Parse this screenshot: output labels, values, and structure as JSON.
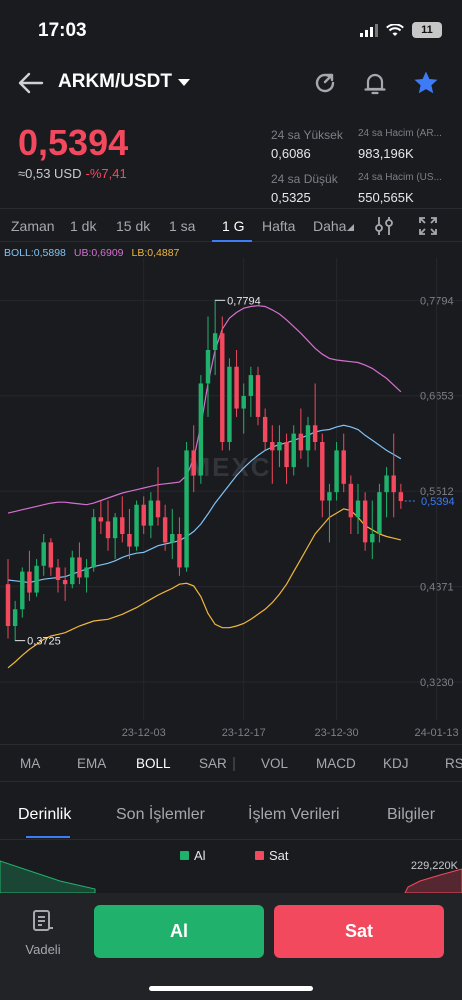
{
  "status": {
    "time": "17:03",
    "battery": "11"
  },
  "header": {
    "pair": "ARKM/USDT"
  },
  "price": {
    "last": "0,5394",
    "usd": "≈0,53 USD",
    "change": "-%7,41"
  },
  "stats": {
    "high_label": "24 sa Yüksek",
    "high": "0,6086",
    "low_label": "24 sa Düşük",
    "low": "0,5325",
    "vol1_label": "24 sa Hacim (AR...",
    "vol1": "983,196K",
    "vol2_label": "24 sa Hacim (US...",
    "vol2": "550,565K"
  },
  "timeframes": [
    "Zaman",
    "1 dk",
    "15 dk",
    "1 sa",
    "1 G",
    "Hafta",
    "Daha"
  ],
  "active_timeframe": "1 G",
  "indicator_legend": {
    "boll": "BOLL:0,5898",
    "ub": "UB:0,6909",
    "lb": "LB:0,4887"
  },
  "colors": {
    "up": "#20b26c",
    "down": "#f2495e",
    "boll": "#7ec3f5",
    "ub": "#d56fd0",
    "lb": "#f0b73e",
    "accent": "#3d7bf7"
  },
  "chart_data": {
    "type": "candlestick",
    "ylim": [
      0.28,
      0.83
    ],
    "yticks": [
      "0,7794",
      "0,6653",
      "0,5512",
      "0,4371",
      "0,3230"
    ],
    "xticks": [
      "23-12-03",
      "23-12-17",
      "23-12-30",
      "24-01-13"
    ],
    "max_label": "0,7794",
    "min_label": "0,3725",
    "last_label": "0,5394",
    "watermark": "MEXC",
    "candles": [
      [
        0.44,
        0.47,
        0.375,
        0.39
      ],
      [
        0.39,
        0.42,
        0.372,
        0.41
      ],
      [
        0.41,
        0.46,
        0.4,
        0.455
      ],
      [
        0.455,
        0.48,
        0.42,
        0.43
      ],
      [
        0.43,
        0.47,
        0.425,
        0.462
      ],
      [
        0.462,
        0.5,
        0.45,
        0.49
      ],
      [
        0.49,
        0.495,
        0.45,
        0.46
      ],
      [
        0.46,
        0.47,
        0.43,
        0.445
      ],
      [
        0.445,
        0.46,
        0.42,
        0.44
      ],
      [
        0.44,
        0.48,
        0.435,
        0.472
      ],
      [
        0.472,
        0.49,
        0.44,
        0.448
      ],
      [
        0.448,
        0.47,
        0.43,
        0.46
      ],
      [
        0.46,
        0.53,
        0.455,
        0.52
      ],
      [
        0.52,
        0.54,
        0.5,
        0.515
      ],
      [
        0.515,
        0.54,
        0.48,
        0.495
      ],
      [
        0.495,
        0.525,
        0.47,
        0.52
      ],
      [
        0.52,
        0.545,
        0.49,
        0.5
      ],
      [
        0.5,
        0.53,
        0.47,
        0.485
      ],
      [
        0.485,
        0.54,
        0.48,
        0.535
      ],
      [
        0.535,
        0.545,
        0.5,
        0.51
      ],
      [
        0.51,
        0.55,
        0.495,
        0.54
      ],
      [
        0.54,
        0.58,
        0.51,
        0.52
      ],
      [
        0.52,
        0.535,
        0.48,
        0.49
      ],
      [
        0.49,
        0.53,
        0.47,
        0.5
      ],
      [
        0.5,
        0.52,
        0.45,
        0.46
      ],
      [
        0.46,
        0.61,
        0.455,
        0.6
      ],
      [
        0.6,
        0.63,
        0.55,
        0.57
      ],
      [
        0.57,
        0.69,
        0.56,
        0.68
      ],
      [
        0.68,
        0.76,
        0.64,
        0.72
      ],
      [
        0.72,
        0.78,
        0.69,
        0.74
      ],
      [
        0.74,
        0.76,
        0.6,
        0.61
      ],
      [
        0.61,
        0.71,
        0.6,
        0.7
      ],
      [
        0.7,
        0.72,
        0.64,
        0.65
      ],
      [
        0.65,
        0.68,
        0.62,
        0.665
      ],
      [
        0.665,
        0.7,
        0.64,
        0.69
      ],
      [
        0.69,
        0.7,
        0.63,
        0.64
      ],
      [
        0.64,
        0.65,
        0.6,
        0.61
      ],
      [
        0.61,
        0.63,
        0.56,
        0.6
      ],
      [
        0.6,
        0.63,
        0.58,
        0.61
      ],
      [
        0.61,
        0.62,
        0.56,
        0.58
      ],
      [
        0.58,
        0.63,
        0.57,
        0.62
      ],
      [
        0.62,
        0.65,
        0.59,
        0.6
      ],
      [
        0.6,
        0.64,
        0.58,
        0.63
      ],
      [
        0.63,
        0.68,
        0.6,
        0.61
      ],
      [
        0.61,
        0.62,
        0.52,
        0.54
      ],
      [
        0.54,
        0.56,
        0.49,
        0.55
      ],
      [
        0.55,
        0.61,
        0.54,
        0.6
      ],
      [
        0.6,
        0.62,
        0.55,
        0.56
      ],
      [
        0.56,
        0.57,
        0.5,
        0.52
      ],
      [
        0.52,
        0.56,
        0.5,
        0.54
      ],
      [
        0.54,
        0.55,
        0.48,
        0.49
      ],
      [
        0.49,
        0.54,
        0.47,
        0.5
      ],
      [
        0.5,
        0.56,
        0.49,
        0.55
      ],
      [
        0.55,
        0.58,
        0.52,
        0.57
      ],
      [
        0.57,
        0.62,
        0.52,
        0.55
      ],
      [
        0.55,
        0.56,
        0.53,
        0.5394
      ]
    ],
    "mid": [
      0.445,
      0.444,
      0.443,
      0.442,
      0.444,
      0.446,
      0.447,
      0.448,
      0.449,
      0.452,
      0.455,
      0.458,
      0.461,
      0.463,
      0.465,
      0.468,
      0.472,
      0.475,
      0.477,
      0.478,
      0.482,
      0.486,
      0.488,
      0.49,
      0.492,
      0.497,
      0.503,
      0.512,
      0.524,
      0.537,
      0.548,
      0.559,
      0.57,
      0.579,
      0.587,
      0.594,
      0.6,
      0.604,
      0.607,
      0.609,
      0.612,
      0.615,
      0.618,
      0.622,
      0.624,
      0.625,
      0.628,
      0.63,
      0.628,
      0.625,
      0.618,
      0.612,
      0.606,
      0.6,
      0.595,
      0.59
    ],
    "upper": [
      0.525,
      0.527,
      0.529,
      0.531,
      0.533,
      0.535,
      0.537,
      0.538,
      0.538,
      0.537,
      0.536,
      0.535,
      0.537,
      0.54,
      0.543,
      0.546,
      0.549,
      0.551,
      0.553,
      0.555,
      0.557,
      0.559,
      0.56,
      0.561,
      0.562,
      0.57,
      0.59,
      0.63,
      0.68,
      0.72,
      0.745,
      0.758,
      0.765,
      0.77,
      0.772,
      0.773,
      0.772,
      0.768,
      0.763,
      0.756,
      0.748,
      0.74,
      0.731,
      0.722,
      0.715,
      0.71,
      0.708,
      0.707,
      0.706,
      0.705,
      0.702,
      0.698,
      0.692,
      0.686,
      0.678,
      0.67
    ],
    "lower": [
      0.34,
      0.347,
      0.355,
      0.362,
      0.368,
      0.374,
      0.378,
      0.38,
      0.382,
      0.386,
      0.39,
      0.393,
      0.396,
      0.397,
      0.398,
      0.401,
      0.404,
      0.408,
      0.412,
      0.417,
      0.422,
      0.427,
      0.431,
      0.435,
      0.44,
      0.441,
      0.438,
      0.425,
      0.405,
      0.392,
      0.388,
      0.388,
      0.39,
      0.393,
      0.398,
      0.404,
      0.41,
      0.418,
      0.428,
      0.44,
      0.455,
      0.47,
      0.485,
      0.5,
      0.51,
      0.52,
      0.525,
      0.53,
      0.528,
      0.52,
      0.51,
      0.505,
      0.5,
      0.497,
      0.495,
      0.493
    ]
  },
  "indicators": [
    "MA",
    "EMA",
    "BOLL",
    "SAR",
    "VOL",
    "MACD",
    "KDJ",
    "RS"
  ],
  "active_indicator": "BOLL",
  "tabs": [
    "Derinlik",
    "Son İşlemler",
    "İşlem Verileri",
    "Bilgiler"
  ],
  "active_tab": "Derinlik",
  "depth": {
    "buy_label": "Al",
    "sell_label": "Sat",
    "value": "229,220K"
  },
  "bottom": {
    "vadeli": "Vadeli",
    "buy": "Al",
    "sell": "Sat"
  }
}
